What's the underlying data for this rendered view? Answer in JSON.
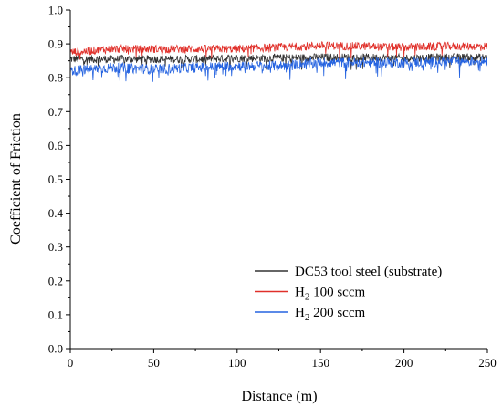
{
  "chart_data": {
    "type": "line",
    "xlabel": "Distance (m)",
    "ylabel": "Coefficient of Friction",
    "xlim": [
      0,
      250
    ],
    "ylim": [
      0.0,
      1.0
    ],
    "x_ticks": [
      "0",
      "50",
      "100",
      "150",
      "200",
      "250"
    ],
    "y_ticks": [
      "0.0",
      "0.1",
      "0.2",
      "0.3",
      "0.4",
      "0.5",
      "0.6",
      "0.7",
      "0.8",
      "0.9",
      "1.0"
    ],
    "grid": false,
    "legend_position": "bottom-right",
    "x": [
      0,
      25,
      50,
      75,
      100,
      125,
      150,
      175,
      200,
      225,
      250
    ],
    "series": [
      {
        "name": "DC53 tool steel (substrate)",
        "legend_main": "DC53 tool steel (substrate)",
        "legend_sub": "",
        "legend_rest": "",
        "color": "#333333",
        "values": [
          0.855,
          0.855,
          0.855,
          0.855,
          0.858,
          0.858,
          0.86,
          0.86,
          0.858,
          0.86,
          0.86
        ],
        "noise": 0.012
      },
      {
        "name": "H2 100 sccm",
        "legend_main": "H",
        "legend_sub": "2",
        "legend_rest": " 100 sccm",
        "color": "#e0302a",
        "values": [
          0.875,
          0.885,
          0.885,
          0.885,
          0.885,
          0.89,
          0.895,
          0.893,
          0.89,
          0.893,
          0.893
        ],
        "noise": 0.012
      },
      {
        "name": "H2 200 sccm",
        "legend_main": "H",
        "legend_sub": "2",
        "legend_rest": " 200 sccm",
        "color": "#2563e0",
        "values": [
          0.82,
          0.83,
          0.825,
          0.83,
          0.835,
          0.835,
          0.845,
          0.845,
          0.845,
          0.848,
          0.85
        ],
        "noise": 0.015
      }
    ]
  }
}
